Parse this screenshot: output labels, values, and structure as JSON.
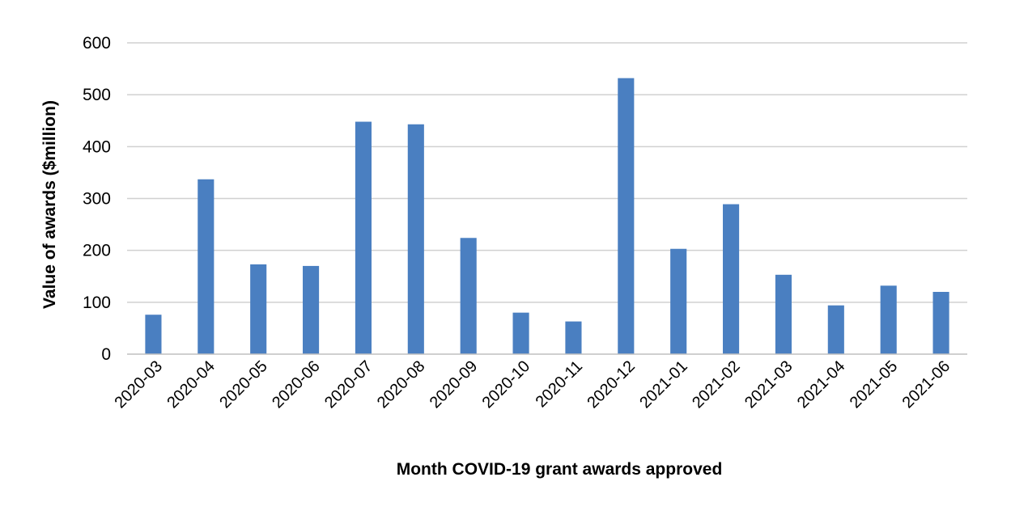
{
  "chart_data": {
    "type": "bar",
    "title": "",
    "xlabel": "Month COVID-19 grant awards approved",
    "ylabel": "Value of awards ($million)",
    "ylim": [
      0,
      600
    ],
    "yticks": [
      0,
      100,
      200,
      300,
      400,
      500,
      600
    ],
    "grid": true,
    "legend": "none",
    "bar_color": "#4a7fc1",
    "categories": [
      "2020-03",
      "2020-04",
      "2020-05",
      "2020-06",
      "2020-07",
      "2020-08",
      "2020-09",
      "2020-10",
      "2020-11",
      "2020-12",
      "2021-01",
      "2021-02",
      "2021-03",
      "2021-04",
      "2021-05",
      "2021-06"
    ],
    "values": [
      76,
      337,
      173,
      170,
      448,
      443,
      224,
      80,
      63,
      532,
      203,
      289,
      153,
      94,
      132,
      120
    ]
  }
}
